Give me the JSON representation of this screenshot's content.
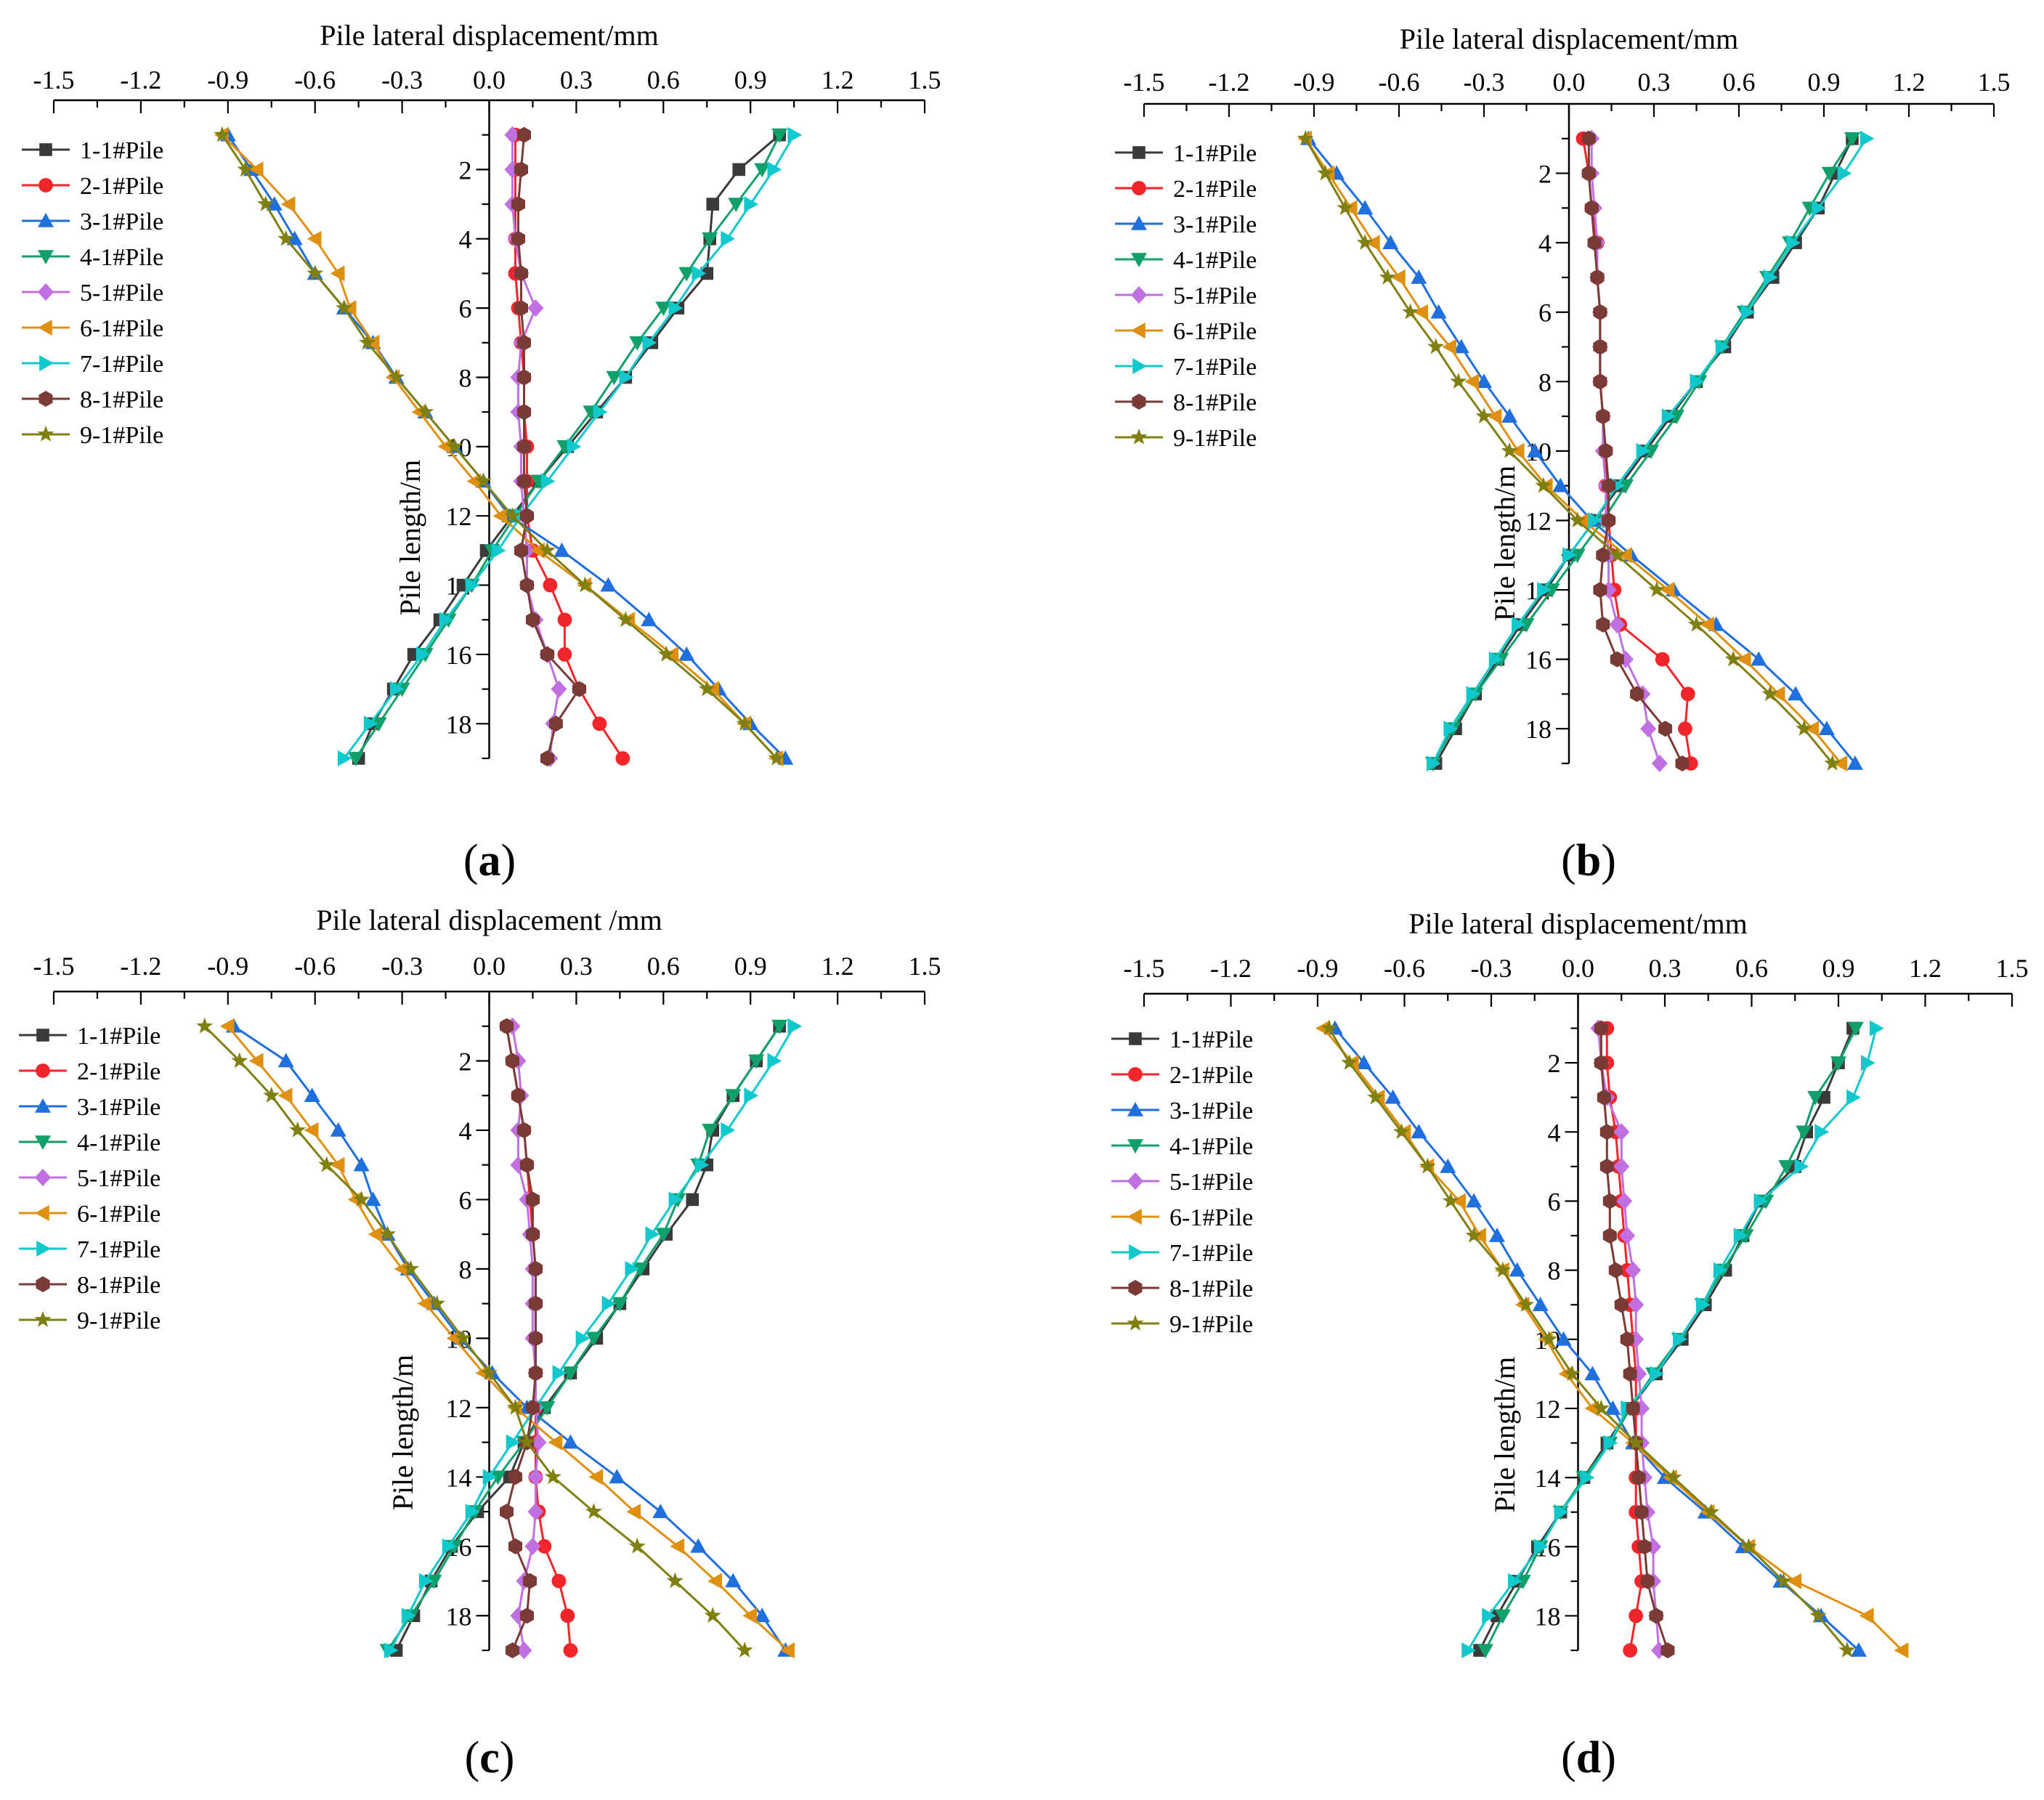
{
  "colors": {
    "1-1#Pile": "#3a3a3a",
    "2-1#Pile": "#f0262a",
    "3-1#Pile": "#1f6fdc",
    "4-1#Pile": "#11a06a",
    "5-1#Pile": "#c070e0",
    "6-1#Pile": "#e09010",
    "7-1#Pile": "#11c8cc",
    "8-1#Pile": "#7a3a36",
    "9-1#Pile": "#808010"
  },
  "markers": {
    "1-1#Pile": "square",
    "2-1#Pile": "circle",
    "3-1#Pile": "triangle-up",
    "4-1#Pile": "triangle-down",
    "5-1#Pile": "diamond",
    "6-1#Pile": "triangle-left",
    "7-1#Pile": "triangle-right",
    "8-1#Pile": "hexagon",
    "9-1#Pile": "star"
  },
  "chart_data": [
    {
      "type": "line",
      "panel_label": "(a)",
      "panel_letter": "a",
      "xlabel": "Pile lateral displacement/mm",
      "ylabel": "Pile length/m",
      "xlim": [
        -1.5,
        1.5
      ],
      "ylim": [
        0,
        19
      ],
      "x_ticks": [
        "-1.5",
        "-1.2",
        "-0.9",
        "-0.6",
        "-0.3",
        "0.0",
        "0.3",
        "0.6",
        "0.9",
        "1.2",
        "1.5"
      ],
      "y_ticks": [
        "2",
        "4",
        "6",
        "8",
        "10",
        "12",
        "14",
        "16",
        "18"
      ],
      "y_inverted": true,
      "x_axis_position": "top",
      "legend_position": "top-left",
      "grid": false,
      "y_values": [
        1,
        2,
        3,
        4,
        5,
        6,
        7,
        8,
        9,
        10,
        11,
        12,
        13,
        14,
        15,
        16,
        17,
        18,
        19
      ],
      "series": [
        {
          "name": "1-1#Pile",
          "x": [
            1.0,
            0.86,
            0.77,
            0.76,
            0.75,
            0.65,
            0.56,
            0.47,
            0.37,
            0.27,
            0.17,
            0.08,
            -0.01,
            -0.09,
            -0.17,
            -0.26,
            -0.33,
            -0.4,
            -0.45
          ]
        },
        {
          "name": "2-1#Pile",
          "x": [
            0.09,
            0.09,
            0.09,
            0.09,
            0.09,
            0.1,
            0.11,
            0.12,
            0.12,
            0.13,
            0.13,
            0.13,
            0.15,
            0.21,
            0.26,
            0.26,
            0.31,
            0.38,
            0.46
          ]
        },
        {
          "name": "3-1#Pile",
          "x": [
            -0.9,
            -0.82,
            -0.74,
            -0.67,
            -0.6,
            -0.5,
            -0.4,
            -0.32,
            -0.22,
            -0.12,
            -0.02,
            0.07,
            0.25,
            0.41,
            0.55,
            0.68,
            0.79,
            0.9,
            1.02
          ]
        },
        {
          "name": "4-1#Pile",
          "x": [
            1.0,
            0.94,
            0.85,
            0.76,
            0.68,
            0.6,
            0.51,
            0.43,
            0.35,
            0.26,
            0.17,
            0.09,
            0.01,
            -0.06,
            -0.14,
            -0.22,
            -0.3,
            -0.38,
            -0.46
          ]
        },
        {
          "name": "5-1#Pile",
          "x": [
            0.08,
            0.08,
            0.08,
            0.09,
            0.11,
            0.16,
            0.11,
            0.1,
            0.1,
            0.11,
            0.11,
            0.12,
            0.13,
            0.13,
            0.16,
            0.2,
            0.24,
            0.22,
            0.21
          ]
        },
        {
          "name": "6-1#Pile",
          "x": [
            -0.92,
            -0.8,
            -0.69,
            -0.6,
            -0.52,
            -0.48,
            -0.4,
            -0.33,
            -0.24,
            -0.15,
            -0.05,
            0.04,
            0.17,
            0.33,
            0.48,
            0.63,
            0.77,
            0.88,
            0.99
          ]
        },
        {
          "name": "7-1#Pile",
          "x": [
            1.05,
            0.98,
            0.9,
            0.82,
            0.72,
            0.64,
            0.55,
            0.47,
            0.38,
            0.29,
            0.2,
            0.11,
            0.03,
            -0.06,
            -0.15,
            -0.23,
            -0.32,
            -0.41,
            -0.5
          ]
        },
        {
          "name": "8-1#Pile",
          "x": [
            0.12,
            0.11,
            0.1,
            0.1,
            0.11,
            0.11,
            0.12,
            0.12,
            0.12,
            0.12,
            0.12,
            0.13,
            0.11,
            0.13,
            0.15,
            0.2,
            0.31,
            0.23,
            0.2
          ]
        },
        {
          "name": "9-1#Pile",
          "x": [
            -0.92,
            -0.84,
            -0.77,
            -0.7,
            -0.6,
            -0.5,
            -0.42,
            -0.32,
            -0.22,
            -0.12,
            -0.02,
            0.08,
            0.2,
            0.33,
            0.47,
            0.61,
            0.75,
            0.88,
            0.99
          ]
        }
      ]
    },
    {
      "type": "line",
      "panel_label": "(b)",
      "panel_letter": "b",
      "xlabel": "Pile lateral displacement/mm",
      "ylabel": "Pile length/m",
      "xlim": [
        -1.5,
        1.5
      ],
      "ylim": [
        0,
        19
      ],
      "x_ticks": [
        "-1.5",
        "-1.2",
        "-0.9",
        "-0.6",
        "-0.3",
        "0.0",
        "0.3",
        "0.6",
        "0.9",
        "1.2",
        "1.5"
      ],
      "y_ticks": [
        "2",
        "4",
        "6",
        "8",
        "10",
        "12",
        "14",
        "16",
        "18"
      ],
      "y_inverted": true,
      "x_axis_position": "top",
      "legend_position": "top-left",
      "grid": false,
      "y_values": [
        1,
        2,
        3,
        4,
        5,
        6,
        7,
        8,
        9,
        10,
        11,
        12,
        13,
        14,
        15,
        16,
        17,
        18,
        19
      ],
      "series": [
        {
          "name": "1-1#Pile",
          "x": [
            1.0,
            0.94,
            0.88,
            0.8,
            0.72,
            0.63,
            0.55,
            0.45,
            0.36,
            0.27,
            0.18,
            0.09,
            0.0,
            -0.08,
            -0.17,
            -0.25,
            -0.33,
            -0.4,
            -0.47
          ]
        },
        {
          "name": "2-1#Pile",
          "x": [
            0.05,
            0.07,
            0.08,
            0.1,
            0.1,
            0.11,
            0.11,
            0.11,
            0.12,
            0.13,
            0.13,
            0.14,
            0.15,
            0.16,
            0.18,
            0.33,
            0.42,
            0.41,
            0.43
          ]
        },
        {
          "name": "3-1#Pile",
          "x": [
            -0.92,
            -0.82,
            -0.72,
            -0.63,
            -0.53,
            -0.46,
            -0.38,
            -0.3,
            -0.21,
            -0.12,
            -0.03,
            0.08,
            0.22,
            0.37,
            0.52,
            0.67,
            0.8,
            0.91,
            1.01
          ]
        },
        {
          "name": "4-1#Pile",
          "x": [
            1.0,
            0.92,
            0.85,
            0.78,
            0.7,
            0.62,
            0.54,
            0.46,
            0.38,
            0.29,
            0.2,
            0.12,
            0.03,
            -0.06,
            -0.15,
            -0.24,
            -0.33,
            -0.41,
            -0.48
          ]
        },
        {
          "name": "5-1#Pile",
          "x": [
            0.08,
            0.08,
            0.09,
            0.1,
            0.1,
            0.11,
            0.11,
            0.11,
            0.12,
            0.12,
            0.13,
            0.13,
            0.14,
            0.14,
            0.17,
            0.2,
            0.26,
            0.28,
            0.32
          ]
        },
        {
          "name": "6-1#Pile",
          "x": [
            -0.93,
            -0.85,
            -0.77,
            -0.69,
            -0.6,
            -0.52,
            -0.42,
            -0.34,
            -0.26,
            -0.18,
            -0.08,
            0.05,
            0.2,
            0.35,
            0.49,
            0.62,
            0.74,
            0.86,
            0.96
          ]
        },
        {
          "name": "7-1#Pile",
          "x": [
            1.05,
            0.97,
            0.88,
            0.79,
            0.71,
            0.63,
            0.54,
            0.45,
            0.35,
            0.26,
            0.17,
            0.09,
            0.0,
            -0.09,
            -0.18,
            -0.26,
            -0.34,
            -0.42,
            -0.48
          ]
        },
        {
          "name": "8-1#Pile",
          "x": [
            0.07,
            0.07,
            0.08,
            0.09,
            0.1,
            0.11,
            0.11,
            0.11,
            0.12,
            0.13,
            0.14,
            0.14,
            0.12,
            0.11,
            0.12,
            0.17,
            0.24,
            0.34,
            0.4
          ]
        },
        {
          "name": "9-1#Pile",
          "x": [
            -0.93,
            -0.86,
            -0.79,
            -0.72,
            -0.64,
            -0.56,
            -0.47,
            -0.39,
            -0.3,
            -0.21,
            -0.09,
            0.03,
            0.17,
            0.31,
            0.45,
            0.58,
            0.71,
            0.83,
            0.93
          ]
        }
      ]
    },
    {
      "type": "line",
      "panel_label": "(c)",
      "panel_letter": "c",
      "xlabel": "Pile lateral displacement /mm",
      "ylabel": "Pile length/m",
      "xlim": [
        -1.5,
        1.5
      ],
      "ylim": [
        0,
        19
      ],
      "x_ticks": [
        "-1.5",
        "-1.2",
        "-0.9",
        "-0.6",
        "-0.3",
        "0.0",
        "0.3",
        "0.6",
        "0.9",
        "1.2",
        "1.5"
      ],
      "y_ticks": [
        "2",
        "4",
        "6",
        "8",
        "10",
        "12",
        "14",
        "16",
        "18"
      ],
      "y_inverted": true,
      "x_axis_position": "top",
      "legend_position": "top-left",
      "grid": false,
      "y_values": [
        1,
        2,
        3,
        4,
        5,
        6,
        7,
        8,
        9,
        10,
        11,
        12,
        13,
        14,
        15,
        16,
        17,
        18,
        19
      ],
      "series": [
        {
          "name": "1-1#Pile",
          "x": [
            1.0,
            0.92,
            0.84,
            0.77,
            0.75,
            0.7,
            0.61,
            0.53,
            0.45,
            0.37,
            0.28,
            0.19,
            0.12,
            0.07,
            -0.04,
            -0.13,
            -0.2,
            -0.26,
            -0.32
          ]
        },
        {
          "name": "2-1#Pile",
          "x": [
            0.06,
            0.08,
            0.1,
            0.12,
            0.13,
            0.14,
            0.15,
            0.16,
            0.16,
            0.16,
            0.16,
            0.16,
            0.16,
            0.16,
            0.17,
            0.19,
            0.24,
            0.27,
            0.28
          ]
        },
        {
          "name": "3-1#Pile",
          "x": [
            -0.88,
            -0.7,
            -0.61,
            -0.52,
            -0.44,
            -0.4,
            -0.35,
            -0.28,
            -0.19,
            -0.1,
            0.01,
            0.13,
            0.28,
            0.44,
            0.59,
            0.72,
            0.84,
            0.94,
            1.02
          ]
        },
        {
          "name": "4-1#Pile",
          "x": [
            1.0,
            0.92,
            0.84,
            0.76,
            0.72,
            0.65,
            0.6,
            0.52,
            0.45,
            0.36,
            0.28,
            0.2,
            0.12,
            0.03,
            -0.05,
            -0.12,
            -0.19,
            -0.27,
            -0.35
          ]
        },
        {
          "name": "5-1#Pile",
          "x": [
            0.08,
            0.1,
            0.11,
            0.1,
            0.1,
            0.13,
            0.14,
            0.15,
            0.15,
            0.15,
            0.16,
            0.16,
            0.17,
            0.16,
            0.16,
            0.15,
            0.12,
            0.1,
            0.12
          ]
        },
        {
          "name": "6-1#Pile",
          "x": [
            -0.9,
            -0.8,
            -0.7,
            -0.61,
            -0.52,
            -0.46,
            -0.39,
            -0.3,
            -0.22,
            -0.12,
            -0.02,
            0.09,
            0.23,
            0.37,
            0.5,
            0.65,
            0.78,
            0.9,
            1.03
          ]
        },
        {
          "name": "7-1#Pile",
          "x": [
            1.05,
            0.98,
            0.9,
            0.82,
            0.73,
            0.64,
            0.56,
            0.49,
            0.41,
            0.32,
            0.24,
            0.16,
            0.08,
            0.0,
            -0.06,
            -0.14,
            -0.22,
            -0.28,
            -0.34
          ]
        },
        {
          "name": "8-1#Pile",
          "x": [
            0.06,
            0.08,
            0.1,
            0.12,
            0.13,
            0.15,
            0.15,
            0.16,
            0.16,
            0.16,
            0.16,
            0.15,
            0.13,
            0.09,
            0.06,
            0.09,
            0.14,
            0.13,
            0.08
          ]
        },
        {
          "name": "9-1#Pile",
          "x": [
            -0.98,
            -0.86,
            -0.75,
            -0.66,
            -0.56,
            -0.44,
            -0.35,
            -0.27,
            -0.18,
            -0.09,
            0.0,
            0.09,
            0.13,
            0.22,
            0.36,
            0.51,
            0.64,
            0.77,
            0.88
          ]
        }
      ]
    },
    {
      "type": "line",
      "panel_label": "(d)",
      "panel_letter": "d",
      "xlabel": "Pile lateral displacement/mm",
      "ylabel": "Pile length/m",
      "xlim": [
        -1.5,
        1.5
      ],
      "ylim": [
        0,
        19
      ],
      "x_ticks": [
        "-1.5",
        "-1.2",
        "-0.9",
        "-0.6",
        "-0.3",
        "0.0",
        "0.3",
        "0.6",
        "0.9",
        "1.2",
        "1.5"
      ],
      "y_ticks": [
        "2",
        "4",
        "6",
        "8",
        "10",
        "12",
        "14",
        "16",
        "18"
      ],
      "y_inverted": true,
      "x_axis_position": "top",
      "legend_position": "top-left",
      "grid": false,
      "y_values": [
        1,
        2,
        3,
        4,
        5,
        6,
        7,
        8,
        9,
        10,
        11,
        12,
        13,
        14,
        15,
        16,
        17,
        18,
        19
      ],
      "series": [
        {
          "name": "1-1#Pile",
          "x": [
            0.95,
            0.9,
            0.85,
            0.79,
            0.75,
            0.63,
            0.57,
            0.51,
            0.44,
            0.36,
            0.27,
            0.18,
            0.1,
            0.02,
            -0.06,
            -0.14,
            -0.21,
            -0.28,
            -0.34
          ]
        },
        {
          "name": "2-1#Pile",
          "x": [
            0.1,
            0.1,
            0.11,
            0.13,
            0.14,
            0.15,
            0.16,
            0.17,
            0.18,
            0.19,
            0.2,
            0.2,
            0.2,
            0.2,
            0.2,
            0.21,
            0.22,
            0.2,
            0.18
          ]
        },
        {
          "name": "3-1#Pile",
          "x": [
            -0.84,
            -0.74,
            -0.64,
            -0.55,
            -0.45,
            -0.36,
            -0.28,
            -0.21,
            -0.13,
            -0.05,
            0.05,
            0.12,
            0.19,
            0.3,
            0.44,
            0.57,
            0.7,
            0.84,
            0.97
          ]
        },
        {
          "name": "4-1#Pile",
          "x": [
            0.96,
            0.9,
            0.82,
            0.78,
            0.72,
            0.65,
            0.58,
            0.5,
            0.43,
            0.35,
            0.26,
            0.18,
            0.11,
            0.02,
            -0.06,
            -0.13,
            -0.19,
            -0.26,
            -0.32
          ]
        },
        {
          "name": "5-1#Pile",
          "x": [
            0.07,
            0.08,
            0.1,
            0.15,
            0.15,
            0.16,
            0.17,
            0.19,
            0.2,
            0.2,
            0.21,
            0.22,
            0.22,
            0.23,
            0.24,
            0.26,
            0.26,
            0.27,
            0.28
          ]
        },
        {
          "name": "6-1#Pile",
          "x": [
            -0.88,
            -0.78,
            -0.69,
            -0.6,
            -0.52,
            -0.41,
            -0.34,
            -0.26,
            -0.19,
            -0.11,
            -0.04,
            0.05,
            0.19,
            0.32,
            0.45,
            0.59,
            0.75,
            1.0,
            1.12
          ]
        },
        {
          "name": "7-1#Pile",
          "x": [
            1.03,
            1.0,
            0.95,
            0.84,
            0.77,
            0.63,
            0.56,
            0.49,
            0.43,
            0.35,
            0.27,
            0.17,
            0.11,
            0.03,
            -0.06,
            -0.13,
            -0.22,
            -0.31,
            -0.38
          ]
        },
        {
          "name": "8-1#Pile",
          "x": [
            0.08,
            0.08,
            0.09,
            0.1,
            0.1,
            0.11,
            0.11,
            0.13,
            0.15,
            0.17,
            0.18,
            0.19,
            0.2,
            0.21,
            0.22,
            0.23,
            0.24,
            0.27,
            0.31
          ]
        },
        {
          "name": "9-1#Pile",
          "x": [
            -0.86,
            -0.79,
            -0.7,
            -0.61,
            -0.52,
            -0.44,
            -0.36,
            -0.26,
            -0.18,
            -0.1,
            -0.02,
            0.08,
            0.2,
            0.33,
            0.46,
            0.59,
            0.71,
            0.83,
            0.93
          ]
        }
      ]
    }
  ]
}
